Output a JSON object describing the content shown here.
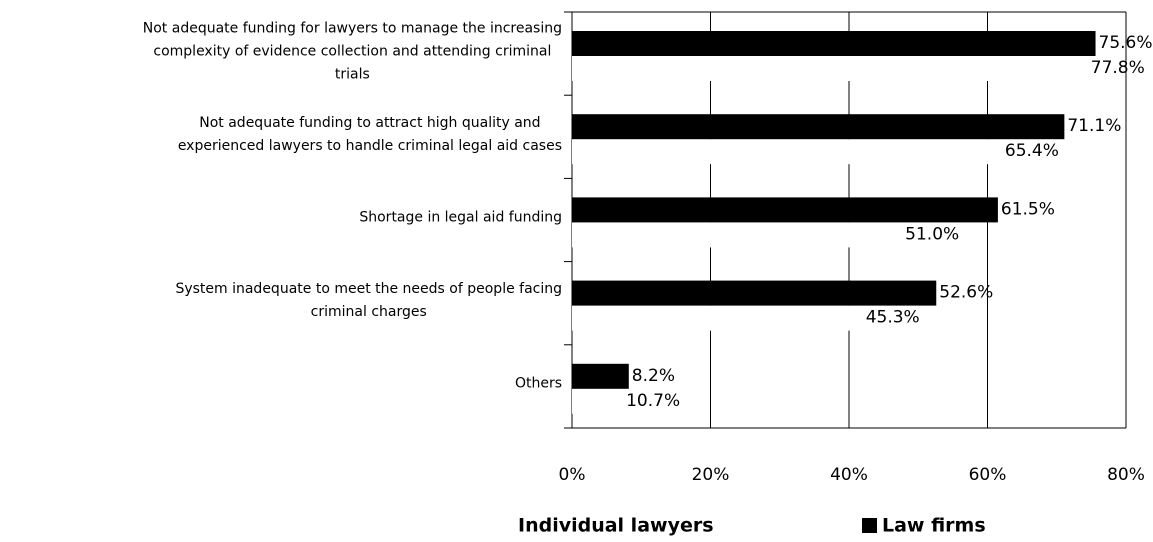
{
  "chart_data": {
    "type": "bar",
    "orientation": "horizontal",
    "categories": [
      "Not adequate funding for lawyers to manage the increasing\ncomplexity of evidence collection and attending criminal\ntrials",
      "Not adequate funding to attract high quality and\nexperienced lawyers to handle criminal legal aid cases",
      "Shortage in legal aid funding",
      "System inadequate to meet the needs of people facing\ncriminal charges",
      "Others"
    ],
    "series": [
      {
        "name": "Individual lawyers",
        "color": "#ffffff",
        "values": [
          77.8,
          65.4,
          51.0,
          45.3,
          10.7
        ],
        "value_labels": [
          "77.8%",
          "65.4%",
          "51.0%",
          "45.3%",
          "10.7%"
        ]
      },
      {
        "name": "Law firms",
        "color": "#000000",
        "values": [
          75.6,
          71.1,
          61.5,
          52.6,
          8.2
        ],
        "value_labels": [
          "75.6%",
          "71.1%",
          "61.5%",
          "52.6%",
          "8.2%"
        ]
      }
    ],
    "xlim": [
      0,
      80
    ],
    "xticks": [
      {
        "value": 0,
        "label": "0%"
      },
      {
        "value": 20,
        "label": "20%"
      },
      {
        "value": 40,
        "label": "40%"
      },
      {
        "value": 60,
        "label": "60%"
      },
      {
        "value": 80,
        "label": "80%"
      }
    ],
    "grid": true,
    "legend": "bottom"
  }
}
